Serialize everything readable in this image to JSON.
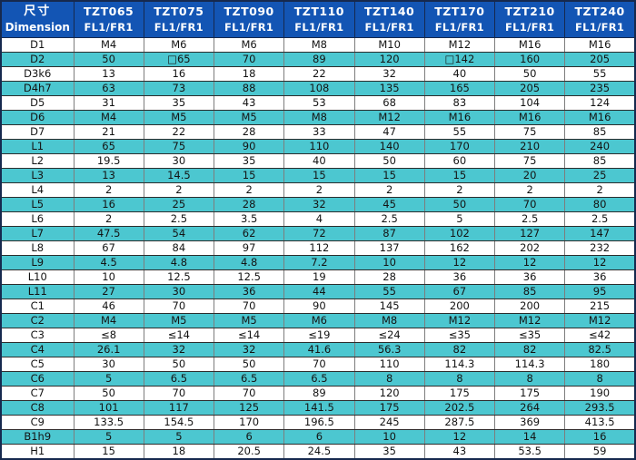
{
  "colors": {
    "header_bg": "#1355b4",
    "header_text": "#ffffff",
    "stripe_row_bg": "#4cc7d0",
    "plain_row_bg": "#ffffff",
    "outer_border": "#16294e",
    "grid_vertical": "#7d7d7d",
    "grid_horizontal": "#2c2c2c",
    "body_text": "#141414"
  },
  "table": {
    "header": {
      "dimension_col": {
        "zh": "尺寸",
        "en": "Dimension"
      },
      "columns": [
        {
          "model": "TZT065",
          "variant": "FL1/FR1"
        },
        {
          "model": "TZT075",
          "variant": "FL1/FR1"
        },
        {
          "model": "TZT090",
          "variant": "FL1/FR1"
        },
        {
          "model": "TZT110",
          "variant": "FL1/FR1"
        },
        {
          "model": "TZT140",
          "variant": "FL1/FR1"
        },
        {
          "model": "TZT170",
          "variant": "FL1/FR1"
        },
        {
          "model": "TZT210",
          "variant": "FL1/FR1"
        },
        {
          "model": "TZT240",
          "variant": "FL1/FR1"
        }
      ]
    },
    "rows": [
      {
        "label": "D1",
        "values": [
          "M4",
          "M6",
          "M6",
          "M8",
          "M10",
          "M12",
          "M16",
          "M16"
        ]
      },
      {
        "label": "D2",
        "values": [
          "50",
          "□65",
          "70",
          "89",
          "120",
          "□142",
          "160",
          "205"
        ]
      },
      {
        "label": "D3k6",
        "values": [
          "13",
          "16",
          "18",
          "22",
          "32",
          "40",
          "50",
          "55"
        ]
      },
      {
        "label": "D4h7",
        "values": [
          "63",
          "73",
          "88",
          "108",
          "135",
          "165",
          "205",
          "235"
        ]
      },
      {
        "label": "D5",
        "values": [
          "31",
          "35",
          "43",
          "53",
          "68",
          "83",
          "104",
          "124"
        ]
      },
      {
        "label": "D6",
        "values": [
          "M4",
          "M5",
          "M5",
          "M8",
          "M12",
          "M16",
          "M16",
          "M16"
        ]
      },
      {
        "label": "D7",
        "values": [
          "21",
          "22",
          "28",
          "33",
          "47",
          "55",
          "75",
          "85"
        ]
      },
      {
        "label": "L1",
        "values": [
          "65",
          "75",
          "90",
          "110",
          "140",
          "170",
          "210",
          "240"
        ]
      },
      {
        "label": "L2",
        "values": [
          "19.5",
          "30",
          "35",
          "40",
          "50",
          "60",
          "75",
          "85"
        ]
      },
      {
        "label": "L3",
        "values": [
          "13",
          "14.5",
          "15",
          "15",
          "15",
          "15",
          "20",
          "25"
        ]
      },
      {
        "label": "L4",
        "values": [
          "2",
          "2",
          "2",
          "2",
          "2",
          "2",
          "2",
          "2"
        ]
      },
      {
        "label": "L5",
        "values": [
          "16",
          "25",
          "28",
          "32",
          "45",
          "50",
          "70",
          "80"
        ]
      },
      {
        "label": "L6",
        "values": [
          "2",
          "2.5",
          "3.5",
          "4",
          "2.5",
          "5",
          "2.5",
          "2.5"
        ]
      },
      {
        "label": "L7",
        "values": [
          "47.5",
          "54",
          "62",
          "72",
          "87",
          "102",
          "127",
          "147"
        ]
      },
      {
        "label": "L8",
        "values": [
          "67",
          "84",
          "97",
          "112",
          "137",
          "162",
          "202",
          "232"
        ]
      },
      {
        "label": "L9",
        "values": [
          "4.5",
          "4.8",
          "4.8",
          "7.2",
          "10",
          "12",
          "12",
          "12"
        ]
      },
      {
        "label": "L10",
        "values": [
          "10",
          "12.5",
          "12.5",
          "19",
          "28",
          "36",
          "36",
          "36"
        ]
      },
      {
        "label": "L11",
        "values": [
          "27",
          "30",
          "36",
          "44",
          "55",
          "67",
          "85",
          "95"
        ]
      },
      {
        "label": "C1",
        "values": [
          "46",
          "70",
          "70",
          "90",
          "145",
          "200",
          "200",
          "215"
        ]
      },
      {
        "label": "C2",
        "values": [
          "M4",
          "M5",
          "M5",
          "M6",
          "M8",
          "M12",
          "M12",
          "M12"
        ]
      },
      {
        "label": "C3",
        "values": [
          "≤8",
          "≤14",
          "≤14",
          "≤19",
          "≤24",
          "≤35",
          "≤35",
          "≤42"
        ]
      },
      {
        "label": "C4",
        "values": [
          "26.1",
          "32",
          "32",
          "41.6",
          "56.3",
          "82",
          "82",
          "82.5"
        ]
      },
      {
        "label": "C5",
        "values": [
          "30",
          "50",
          "50",
          "70",
          "110",
          "114.3",
          "114.3",
          "180"
        ]
      },
      {
        "label": "C6",
        "values": [
          "5",
          "6.5",
          "6.5",
          "6.5",
          "8",
          "8",
          "8",
          "8"
        ]
      },
      {
        "label": "C7",
        "values": [
          "50",
          "70",
          "70",
          "89",
          "120",
          "175",
          "175",
          "190"
        ]
      },
      {
        "label": "C8",
        "values": [
          "101",
          "117",
          "125",
          "141.5",
          "175",
          "202.5",
          "264",
          "293.5"
        ]
      },
      {
        "label": "C9",
        "values": [
          "133.5",
          "154.5",
          "170",
          "196.5",
          "245",
          "287.5",
          "369",
          "413.5"
        ]
      },
      {
        "label": "B1h9",
        "values": [
          "5",
          "5",
          "6",
          "6",
          "10",
          "12",
          "14",
          "16"
        ]
      },
      {
        "label": "H1",
        "values": [
          "15",
          "18",
          "20.5",
          "24.5",
          "35",
          "43",
          "53.5",
          "59"
        ]
      }
    ]
  }
}
